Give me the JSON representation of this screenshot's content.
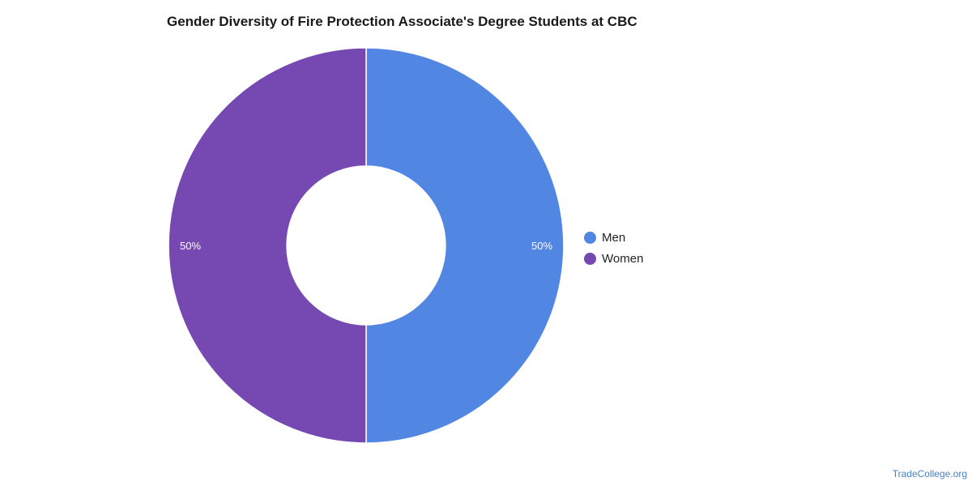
{
  "chart_data": {
    "type": "pie",
    "title": "Gender Diversity of Fire Protection Associate's Degree Students at CBC",
    "donut": true,
    "categories": [
      "Men",
      "Women"
    ],
    "values": [
      50,
      50
    ],
    "labels": [
      "50%",
      "50%"
    ],
    "colors": [
      "#5186e3",
      "#7648b1"
    ],
    "legend_position": "right"
  },
  "source": "TradeCollege.org"
}
